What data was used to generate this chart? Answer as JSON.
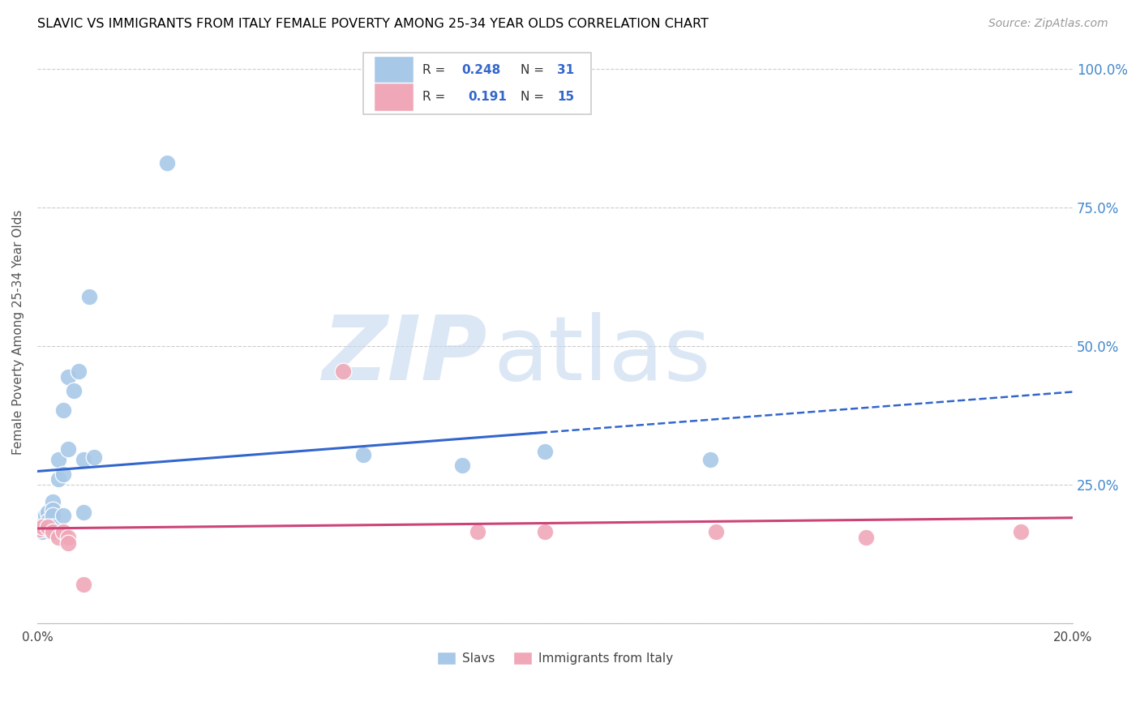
{
  "title": "SLAVIC VS IMMIGRANTS FROM ITALY FEMALE POVERTY AMONG 25-34 YEAR OLDS CORRELATION CHART",
  "source": "Source: ZipAtlas.com",
  "ylabel": "Female Poverty Among 25-34 Year Olds",
  "slavs_color": "#a8c8e8",
  "italy_color": "#f0a8b8",
  "slavs_line_color": "#3366cc",
  "italy_line_color": "#cc4477",
  "slavs_x": [
    0.0005,
    0.001,
    0.001,
    0.001,
    0.0015,
    0.0015,
    0.002,
    0.002,
    0.002,
    0.003,
    0.003,
    0.003,
    0.003,
    0.004,
    0.004,
    0.005,
    0.005,
    0.005,
    0.006,
    0.006,
    0.007,
    0.008,
    0.009,
    0.009,
    0.01,
    0.011,
    0.025,
    0.063,
    0.082,
    0.098,
    0.13
  ],
  "slavs_y": [
    0.17,
    0.19,
    0.18,
    0.165,
    0.195,
    0.175,
    0.2,
    0.185,
    0.17,
    0.22,
    0.205,
    0.195,
    0.175,
    0.295,
    0.26,
    0.385,
    0.27,
    0.195,
    0.445,
    0.315,
    0.42,
    0.455,
    0.295,
    0.2,
    0.59,
    0.3,
    0.83,
    0.305,
    0.285,
    0.31,
    0.295
  ],
  "italy_x": [
    0.0005,
    0.001,
    0.002,
    0.003,
    0.004,
    0.005,
    0.006,
    0.006,
    0.009,
    0.059,
    0.085,
    0.098,
    0.131,
    0.16,
    0.19
  ],
  "italy_y": [
    0.17,
    0.175,
    0.175,
    0.165,
    0.155,
    0.165,
    0.155,
    0.145,
    0.07,
    0.455,
    0.165,
    0.165,
    0.165,
    0.155,
    0.165
  ],
  "slavs_line_solid_end": 0.098,
  "slavs_line_dash_start": 0.095,
  "slavs_line_dash_end": 0.2,
  "xlim": [
    0.0,
    0.2
  ],
  "ylim": [
    0.0,
    1.05
  ],
  "y_ticks": [
    0.0,
    0.25,
    0.5,
    0.75,
    1.0
  ],
  "y_tick_labels_right": [
    "",
    "25.0%",
    "50.0%",
    "75.0%",
    "100.0%"
  ],
  "x_ticks": [
    0.0,
    0.04,
    0.08,
    0.12,
    0.16,
    0.2
  ],
  "x_tick_labels": [
    "0.0%",
    "",
    "",
    "",
    "",
    "20.0%"
  ],
  "right_tick_color": "#4488cc",
  "watermark_zip_color": "#c5d8ef",
  "watermark_atlas_color": "#c5d8ef",
  "legend_r1": "R = 0.248",
  "legend_n1": "N = 31",
  "legend_r2": "R =  0.191",
  "legend_n2": "N = 15",
  "legend_color": "#3366cc",
  "bottom_label1": "Slavs",
  "bottom_label2": "Immigrants from Italy"
}
